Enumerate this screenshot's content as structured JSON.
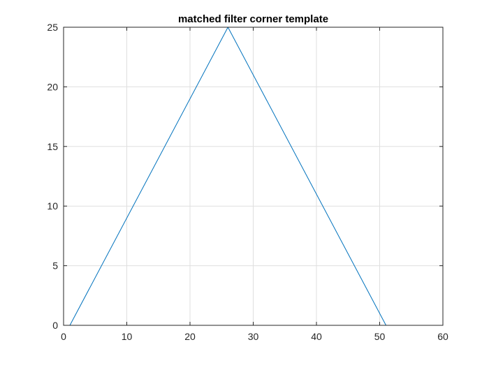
{
  "chart_data": {
    "type": "line",
    "title": "matched filter corner template",
    "xlabel": "",
    "ylabel": "",
    "xlim": [
      0,
      60
    ],
    "ylim": [
      0,
      25
    ],
    "xticks": [
      0,
      10,
      20,
      30,
      40,
      50,
      60
    ],
    "yticks": [
      0,
      5,
      10,
      15,
      20,
      25
    ],
    "grid": true,
    "legend": "none",
    "series": [
      {
        "color": "#0072BD",
        "x": [
          1,
          26,
          51
        ],
        "y": [
          0,
          25,
          0
        ]
      }
    ]
  }
}
